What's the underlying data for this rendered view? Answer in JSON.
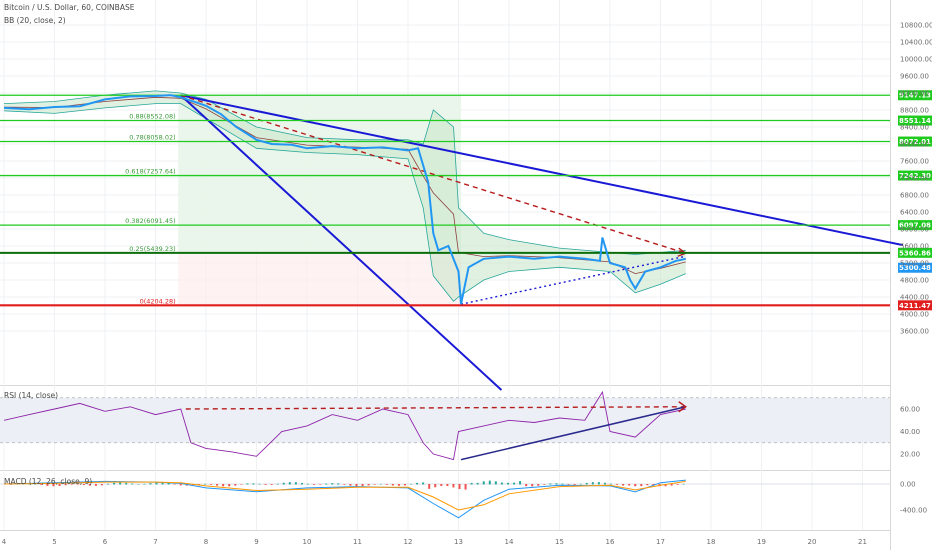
{
  "header": {
    "title": "Bitcoin / U.S. Dollar, 60, COINBASE",
    "bb_label": "BB (20, close, 2)",
    "rsi_label": "RSI (14, close)",
    "macd_label": "MACD (12, 26, close, 9)"
  },
  "colors": {
    "blue_line": "#1a1ad6",
    "price": "#2196f3",
    "fib_green": "#1ecb1e",
    "red": "#e01e1e",
    "dashed_red": "#b71c1c",
    "bb_fill": "#c8e6c9",
    "rsi": "#8e24aa",
    "macd": "#2196f3",
    "signal": "#ff9800"
  },
  "chart_data": {
    "type": "line",
    "title": "Bitcoin / U.S. Dollar, 60, COINBASE",
    "x_ticks": [
      "4",
      "5",
      "6",
      "7",
      "8",
      "9",
      "10",
      "11",
      "12",
      "13",
      "14",
      "15",
      "16",
      "17",
      "18",
      "19",
      "20",
      "21"
    ],
    "price_ticks": [
      "10800.00",
      "10400.00",
      "10000.00",
      "9600.00",
      "9200.00",
      "8800.00",
      "8400.00",
      "8000.00",
      "7600.00",
      "7200.00",
      "6800.00",
      "6400.00",
      "6000.00",
      "5600.00",
      "5200.00",
      "4800.00",
      "4400.00",
      "4000.00",
      "3600.00"
    ],
    "price_series": {
      "name": "Bitcoin / U.S. Dollar",
      "x": [
        4,
        4.5,
        5,
        5.5,
        6,
        6.5,
        7,
        7.3,
        7.5,
        7.8,
        8,
        8.3,
        8.6,
        9,
        9.3,
        9.7,
        10,
        10.5,
        11,
        11.5,
        12,
        12.2,
        12.4,
        12.5,
        12.6,
        12.8,
        13,
        13.05,
        13.2,
        13.5,
        14,
        14.5,
        15,
        15.5,
        15.8,
        15.85,
        16,
        16.3,
        16.4,
        16.5,
        16.7,
        17,
        17.3,
        17.5
      ],
      "y": [
        8850,
        8820,
        8870,
        8890,
        9050,
        9120,
        9130,
        9150,
        9100,
        8980,
        8900,
        8700,
        8400,
        8100,
        8000,
        7980,
        7900,
        7950,
        7900,
        7920,
        7850,
        7900,
        7100,
        5900,
        5500,
        5600,
        5000,
        4230,
        5100,
        5300,
        5350,
        5300,
        5350,
        5300,
        5250,
        5800,
        5200,
        5100,
        4800,
        4600,
        5000,
        5100,
        5250,
        5300
      ]
    },
    "bb_upper": {
      "x": [
        4,
        5,
        6,
        7,
        7.5,
        8,
        9,
        10,
        11,
        12,
        12.3,
        12.5,
        12.9,
        13,
        13.5,
        14,
        15,
        16,
        16.5,
        17,
        17.5
      ],
      "y": [
        8950,
        9000,
        9150,
        9250,
        9200,
        9050,
        8400,
        8150,
        8100,
        8100,
        8000,
        8800,
        8400,
        6500,
        5900,
        5750,
        5550,
        5450,
        5400,
        5450,
        5500
      ]
    },
    "bb_lower": {
      "x": [
        4,
        5,
        6,
        7,
        7.5,
        8,
        9,
        10,
        11,
        12,
        12.3,
        12.5,
        12.9,
        13,
        13.5,
        14,
        15,
        16,
        16.5,
        17,
        17.5
      ],
      "y": [
        8780,
        8720,
        8850,
        8950,
        8950,
        8600,
        7900,
        7800,
        7750,
        7650,
        6500,
        4900,
        4300,
        4400,
        4800,
        5000,
        5100,
        5000,
        4500,
        4700,
        4950
      ]
    },
    "fib_levels": [
      {
        "ratio": "0.88(8552.08)",
        "price": 8552.08,
        "tag": "8551.14"
      },
      {
        "ratio": "0.78(8058.02)",
        "price": 8058.02,
        "tag": "8072.01"
      },
      {
        "ratio": "0.618(7257.64)",
        "price": 7257.64,
        "tag": "7242.30"
      },
      {
        "ratio": "0.382(6091.45)",
        "price": 6091.45,
        "tag": "6097.08"
      },
      {
        "ratio": "0.25(5439.23)",
        "price": 5439.23,
        "tag": "5360.86"
      },
      {
        "ratio": "0(4204.28)",
        "price": 4204.28,
        "tag": "4211.47"
      }
    ],
    "top_level": {
      "price": 9147.13,
      "tag": "9147.13"
    },
    "current_price": {
      "price": 5300.48,
      "tag": "5300.48"
    },
    "rsi_ticks": [
      "60.00",
      "40.00",
      "20.00"
    ],
    "rsi_series": {
      "x": [
        4,
        4.5,
        5,
        5.5,
        6,
        6.5,
        7,
        7.5,
        7.7,
        8,
        8.5,
        9,
        9.5,
        10,
        10.5,
        11,
        11.5,
        12,
        12.3,
        12.5,
        12.9,
        13,
        13.5,
        14,
        14.5,
        15,
        15.5,
        15.85,
        16,
        16.5,
        17,
        17.5
      ],
      "y": [
        50,
        55,
        60,
        65,
        58,
        62,
        55,
        60,
        30,
        25,
        22,
        18,
        40,
        45,
        55,
        50,
        60,
        55,
        30,
        20,
        15,
        40,
        45,
        50,
        48,
        52,
        50,
        75,
        40,
        35,
        55,
        60
      ]
    },
    "macd_ticks": [
      "0.00",
      "-400.00"
    ],
    "macd_series": {
      "name": "MACD",
      "x": [
        4,
        5,
        6,
        7,
        7.5,
        8,
        9,
        10,
        11,
        12,
        12.5,
        13,
        13.5,
        14,
        15,
        16,
        16.5,
        17,
        17.5
      ],
      "y": [
        0,
        20,
        40,
        30,
        10,
        -60,
        -120,
        -60,
        -40,
        -60,
        -300,
        -520,
        -250,
        -80,
        -20,
        -30,
        -120,
        20,
        60
      ]
    },
    "signal_series": {
      "name": "Signal",
      "x": [
        4,
        5,
        6,
        7,
        7.5,
        8,
        9,
        10,
        11,
        12,
        12.5,
        13,
        13.5,
        14,
        15,
        16,
        16.5,
        17,
        17.5
      ],
      "y": [
        0,
        10,
        30,
        30,
        20,
        -30,
        -100,
        -80,
        -50,
        -50,
        -200,
        -400,
        -320,
        -150,
        -40,
        -20,
        -90,
        -20,
        40
      ]
    }
  }
}
